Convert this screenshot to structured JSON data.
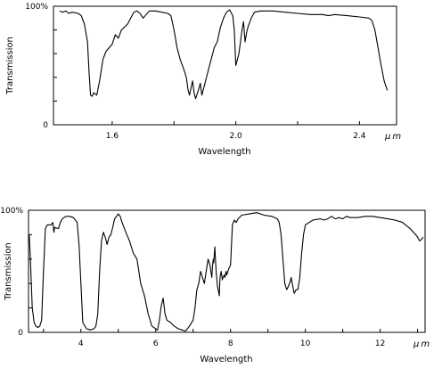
{
  "chart_data": [
    {
      "type": "line",
      "xlabel": "Wavelength",
      "ylabel": "Transmission",
      "x_unit": "μm",
      "xlim": [
        1.41,
        2.52
      ],
      "ylim": [
        0,
        100
      ],
      "x_ticks": [
        1.6,
        1.8,
        2.0,
        2.2,
        2.4
      ],
      "x_tick_labels": [
        "1.6",
        "",
        "2.0",
        "",
        "2.4"
      ],
      "y_ticks": [
        0,
        20,
        40,
        60,
        80,
        100
      ],
      "y_tick_labels": [
        "0",
        "",
        "",
        "",
        "",
        "100%"
      ],
      "grid": false,
      "series": [
        {
          "values": [
            [
              1.43,
              96
            ],
            [
              1.44,
              95
            ],
            [
              1.45,
              96
            ],
            [
              1.46,
              94
            ],
            [
              1.47,
              95
            ],
            [
              1.49,
              94
            ],
            [
              1.5,
              92
            ],
            [
              1.51,
              85
            ],
            [
              1.52,
              70
            ],
            [
              1.525,
              45
            ],
            [
              1.53,
              25
            ],
            [
              1.535,
              24
            ],
            [
              1.54,
              27
            ],
            [
              1.55,
              25
            ],
            [
              1.56,
              38
            ],
            [
              1.57,
              55
            ],
            [
              1.58,
              62
            ],
            [
              1.6,
              68
            ],
            [
              1.61,
              76
            ],
            [
              1.62,
              73
            ],
            [
              1.63,
              80
            ],
            [
              1.65,
              85
            ],
            [
              1.66,
              90
            ],
            [
              1.67,
              95
            ],
            [
              1.68,
              96
            ],
            [
              1.69,
              94
            ],
            [
              1.7,
              90
            ],
            [
              1.71,
              93
            ],
            [
              1.72,
              96
            ],
            [
              1.74,
              96
            ],
            [
              1.76,
              95
            ],
            [
              1.78,
              94
            ],
            [
              1.79,
              92
            ],
            [
              1.8,
              80
            ],
            [
              1.81,
              65
            ],
            [
              1.82,
              55
            ],
            [
              1.83,
              48
            ],
            [
              1.84,
              40
            ],
            [
              1.845,
              30
            ],
            [
              1.85,
              25
            ],
            [
              1.86,
              37
            ],
            [
              1.865,
              27
            ],
            [
              1.87,
              22
            ],
            [
              1.88,
              30
            ],
            [
              1.885,
              35
            ],
            [
              1.89,
              25
            ],
            [
              1.9,
              35
            ],
            [
              1.91,
              45
            ],
            [
              1.92,
              55
            ],
            [
              1.93,
              65
            ],
            [
              1.94,
              70
            ],
            [
              1.95,
              82
            ],
            [
              1.96,
              90
            ],
            [
              1.97,
              95
            ],
            [
              1.98,
              97
            ],
            [
              1.99,
              92
            ],
            [
              1.995,
              80
            ],
            [
              2.0,
              50
            ],
            [
              2.005,
              55
            ],
            [
              2.01,
              60
            ],
            [
              2.02,
              80
            ],
            [
              2.025,
              87
            ],
            [
              2.03,
              70
            ],
            [
              2.035,
              78
            ],
            [
              2.04,
              83
            ],
            [
              2.05,
              90
            ],
            [
              2.06,
              95
            ],
            [
              2.08,
              96
            ],
            [
              2.12,
              96
            ],
            [
              2.16,
              95
            ],
            [
              2.2,
              94
            ],
            [
              2.24,
              93
            ],
            [
              2.28,
              93
            ],
            [
              2.3,
              92
            ],
            [
              2.32,
              93
            ],
            [
              2.36,
              92
            ],
            [
              2.4,
              91
            ],
            [
              2.43,
              90
            ],
            [
              2.44,
              88
            ],
            [
              2.45,
              80
            ],
            [
              2.46,
              65
            ],
            [
              2.47,
              50
            ],
            [
              2.48,
              37
            ],
            [
              2.49,
              29
            ]
          ]
        }
      ]
    },
    {
      "type": "line",
      "xlabel": "Wavelength",
      "ylabel": "Transmission",
      "x_unit": "μm",
      "xlim": [
        2.6,
        13.2
      ],
      "ylim": [
        0,
        100
      ],
      "x_ticks": [
        3,
        4,
        5,
        6,
        7,
        8,
        9,
        10,
        11,
        12,
        13
      ],
      "x_tick_labels": [
        "",
        "4",
        "",
        "6",
        "",
        "8",
        "",
        "10",
        "",
        "12",
        ""
      ],
      "y_ticks": [
        0,
        20,
        40,
        60,
        80,
        100
      ],
      "y_tick_labels": [
        "0",
        "",
        "",
        "",
        "",
        "100%"
      ],
      "grid": false,
      "series": [
        {
          "values": [
            [
              2.62,
              80
            ],
            [
              2.65,
              60
            ],
            [
              2.7,
              20
            ],
            [
              2.75,
              8
            ],
            [
              2.8,
              5
            ],
            [
              2.85,
              4
            ],
            [
              2.9,
              5
            ],
            [
              2.95,
              10
            ],
            [
              3.0,
              50
            ],
            [
              3.05,
              85
            ],
            [
              3.1,
              88
            ],
            [
              3.2,
              88
            ],
            [
              3.25,
              90
            ],
            [
              3.28,
              82
            ],
            [
              3.3,
              86
            ],
            [
              3.4,
              85
            ],
            [
              3.45,
              90
            ],
            [
              3.5,
              93
            ],
            [
              3.6,
              95
            ],
            [
              3.7,
              95
            ],
            [
              3.8,
              94
            ],
            [
              3.9,
              90
            ],
            [
              3.95,
              72
            ],
            [
              4.0,
              40
            ],
            [
              4.05,
              8
            ],
            [
              4.15,
              3
            ],
            [
              4.25,
              2
            ],
            [
              4.35,
              3
            ],
            [
              4.4,
              5
            ],
            [
              4.45,
              15
            ],
            [
              4.5,
              50
            ],
            [
              4.55,
              75
            ],
            [
              4.6,
              82
            ],
            [
              4.65,
              78
            ],
            [
              4.7,
              72
            ],
            [
              4.75,
              78
            ],
            [
              4.8,
              80
            ],
            [
              4.85,
              86
            ],
            [
              4.9,
              93
            ],
            [
              4.95,
              95
            ],
            [
              5.0,
              97
            ],
            [
              5.05,
              95
            ],
            [
              5.1,
              90
            ],
            [
              5.2,
              82
            ],
            [
              5.3,
              75
            ],
            [
              5.4,
              65
            ],
            [
              5.5,
              60
            ],
            [
              5.55,
              50
            ],
            [
              5.6,
              40
            ],
            [
              5.7,
              30
            ],
            [
              5.8,
              15
            ],
            [
              5.9,
              5
            ],
            [
              6.0,
              3
            ],
            [
              6.05,
              2
            ],
            [
              6.1,
              10
            ],
            [
              6.15,
              22
            ],
            [
              6.2,
              28
            ],
            [
              6.25,
              15
            ],
            [
              6.3,
              10
            ],
            [
              6.4,
              8
            ],
            [
              6.5,
              5
            ],
            [
              6.6,
              3
            ],
            [
              6.7,
              2
            ],
            [
              6.8,
              1
            ],
            [
              6.9,
              5
            ],
            [
              7.0,
              10
            ],
            [
              7.05,
              20
            ],
            [
              7.1,
              35
            ],
            [
              7.15,
              40
            ],
            [
              7.2,
              50
            ],
            [
              7.25,
              45
            ],
            [
              7.3,
              40
            ],
            [
              7.35,
              50
            ],
            [
              7.4,
              60
            ],
            [
              7.45,
              55
            ],
            [
              7.5,
              45
            ],
            [
              7.52,
              55
            ],
            [
              7.54,
              60
            ],
            [
              7.55,
              57
            ],
            [
              7.58,
              70
            ],
            [
              7.6,
              58
            ],
            [
              7.62,
              48
            ],
            [
              7.65,
              38
            ],
            [
              7.7,
              30
            ],
            [
              7.72,
              45
            ],
            [
              7.75,
              50
            ],
            [
              7.78,
              43
            ],
            [
              7.8,
              45
            ],
            [
              7.83,
              47
            ],
            [
              7.85,
              45
            ],
            [
              7.88,
              50
            ],
            [
              7.9,
              47
            ],
            [
              7.95,
              52
            ],
            [
              8.0,
              55
            ],
            [
              8.05,
              88
            ],
            [
              8.1,
              92
            ],
            [
              8.15,
              90
            ],
            [
              8.2,
              93
            ],
            [
              8.3,
              96
            ],
            [
              8.5,
              97
            ],
            [
              8.7,
              98
            ],
            [
              8.9,
              96
            ],
            [
              9.1,
              95
            ],
            [
              9.25,
              93
            ],
            [
              9.3,
              90
            ],
            [
              9.35,
              80
            ],
            [
              9.4,
              60
            ],
            [
              9.45,
              40
            ],
            [
              9.5,
              35
            ],
            [
              9.55,
              38
            ],
            [
              9.6,
              42
            ],
            [
              9.62,
              45
            ],
            [
              9.65,
              40
            ],
            [
              9.7,
              32
            ],
            [
              9.75,
              35
            ],
            [
              9.8,
              35
            ],
            [
              9.85,
              45
            ],
            [
              9.9,
              65
            ],
            [
              9.95,
              80
            ],
            [
              10.0,
              88
            ],
            [
              10.1,
              90
            ],
            [
              10.2,
              92
            ],
            [
              10.4,
              93
            ],
            [
              10.5,
              92
            ],
            [
              10.6,
              93
            ],
            [
              10.7,
              95
            ],
            [
              10.8,
              93
            ],
            [
              10.9,
              94
            ],
            [
              11.0,
              93
            ],
            [
              11.1,
              95
            ],
            [
              11.2,
              94
            ],
            [
              11.4,
              94
            ],
            [
              11.6,
              95
            ],
            [
              11.8,
              95
            ],
            [
              12.0,
              94
            ],
            [
              12.2,
              93
            ],
            [
              12.4,
              92
            ],
            [
              12.6,
              90
            ],
            [
              12.8,
              85
            ],
            [
              12.95,
              80
            ],
            [
              13.0,
              78
            ],
            [
              13.05,
              75
            ],
            [
              13.1,
              76
            ],
            [
              13.15,
              78
            ]
          ]
        }
      ]
    }
  ]
}
